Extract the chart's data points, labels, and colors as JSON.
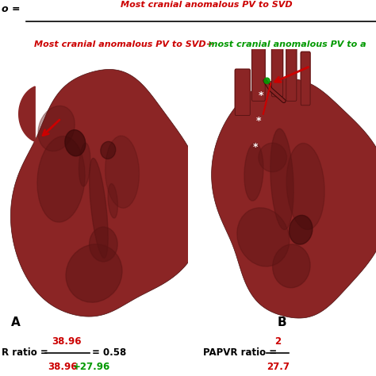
{
  "title_top_red": "Most cranial anomalous PV to SVD",
  "title_bottom_red": "Most cranial anomalous PV to SVD+",
  "title_bottom_green": " most cranial anomalous PV to a",
  "label_A": "A",
  "label_B": "B",
  "ratio_left_prefix": "R ratio = ",
  "ratio_left_num": "38.96",
  "ratio_left_den_red": "38.96",
  "ratio_left_den_green": "+27.96",
  "ratio_left_result": " = 0.58",
  "ratio_right_label": "PAPVR ratio = ",
  "ratio_right_num": "2",
  "ratio_right_den": "27.7",
  "bg_color": "#ffffff",
  "heart_color_main": "#8B2525",
  "heart_color_dark": "#5C1414",
  "heart_color_light": "#A63030",
  "heart_color_mid": "#7A1E1E",
  "red_color": "#cc0000",
  "green_color": "#009900",
  "formula_fontsize": 9,
  "ratio_fontsize": 9
}
